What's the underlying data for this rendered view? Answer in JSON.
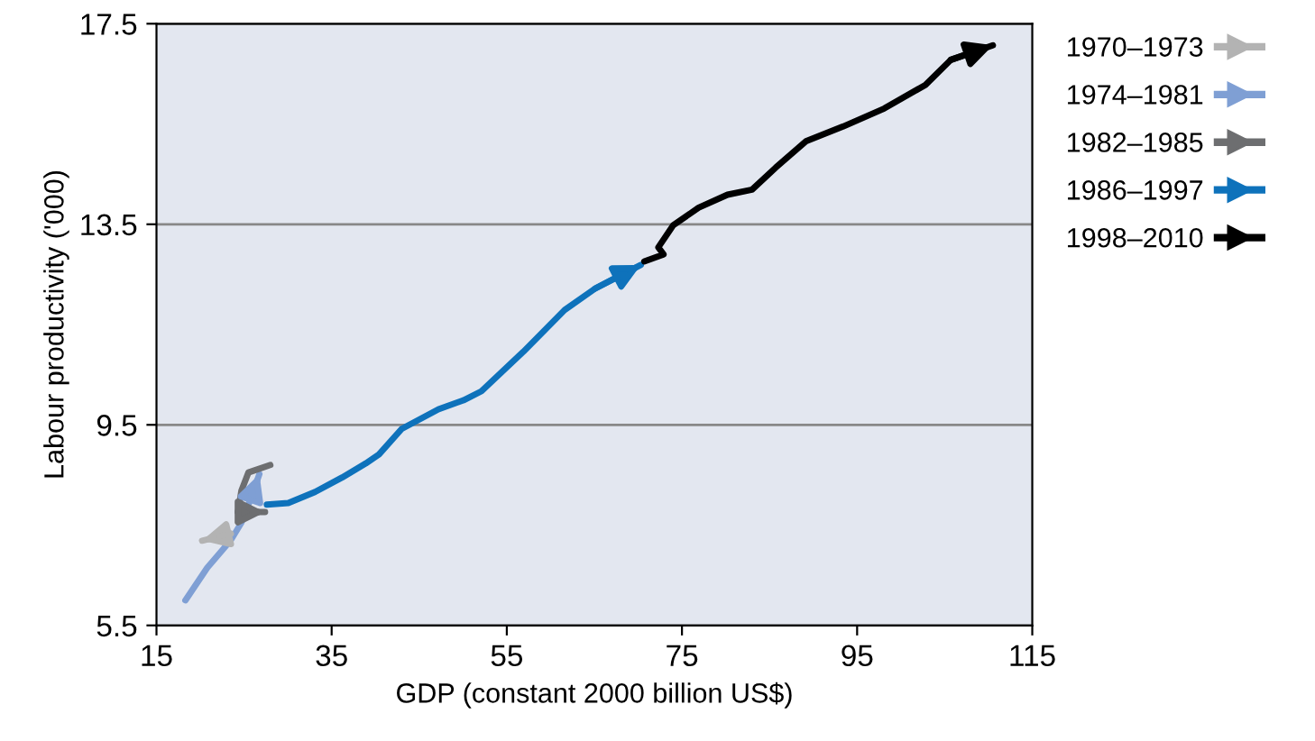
{
  "chart_data": {
    "type": "line",
    "xlabel": "GDP (constant 2000 billion US$)",
    "ylabel": "Labour productivity ('000)",
    "xlim": [
      15,
      115
    ],
    "xticks": [
      15,
      35,
      55,
      75,
      95,
      115
    ],
    "ylim": [
      5.5,
      17.5
    ],
    "yticks": [
      5.5,
      9.5,
      13.5,
      17.5
    ],
    "grid": "y",
    "legend": "right",
    "line_style": "solid",
    "series": [
      {
        "name": "1970–1973",
        "color": "#b3b3b3",
        "x": [
          23.5,
          20.2
        ],
        "values": [
          7.33,
          7.19
        ]
      },
      {
        "name": "1974–1981",
        "color": "#7f9fd4",
        "x": [
          18.3,
          20.8,
          23.45,
          24.7,
          25.9,
          26.75
        ],
        "values": [
          6.0,
          6.65,
          7.19,
          7.55,
          8.09,
          8.52
        ]
      },
      {
        "name": "1982–1985",
        "color": "#6d6e70",
        "x": [
          28.0,
          25.5,
          24.7,
          24.3,
          27.4
        ],
        "values": [
          8.7,
          8.55,
          8.19,
          7.76,
          7.76
        ]
      },
      {
        "name": "1986–1997",
        "color": "#0e72bb",
        "x": [
          27.6,
          30.05,
          33.1,
          36.2,
          38.9,
          40.4,
          43.0,
          47.2,
          50.05,
          52.1,
          56.9,
          61.6,
          65.1,
          70.3
        ],
        "values": [
          7.91,
          7.94,
          8.16,
          8.45,
          8.73,
          8.91,
          9.42,
          9.81,
          9.99,
          10.17,
          10.96,
          11.79,
          12.22,
          12.69
        ]
      },
      {
        "name": "1998–2010",
        "color": "#000000",
        "x": [
          70.7,
          72.9,
          72.3,
          74.0,
          76.9,
          80.2,
          83.0,
          85.7,
          89.2,
          93.4,
          98.1,
          102.8,
          105.7,
          110.5
        ],
        "values": [
          12.76,
          12.9,
          13.04,
          13.48,
          13.83,
          14.09,
          14.19,
          14.63,
          15.16,
          15.45,
          15.81,
          16.28,
          16.78,
          17.07
        ]
      }
    ]
  }
}
